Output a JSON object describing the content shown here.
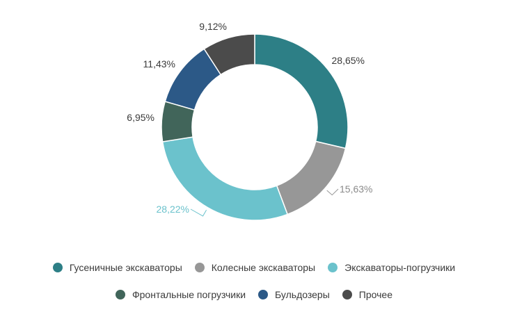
{
  "chart_data": {
    "type": "pie",
    "donut": true,
    "title": "",
    "legend_position": "bottom",
    "slices": [
      {
        "name": "Гусеничные экскаваторы",
        "value": 28.65,
        "label": "28,65%",
        "color": "#2d7f86"
      },
      {
        "name": "Колесные экскаваторы",
        "value": 15.63,
        "label": "15,63%",
        "color": "#979797"
      },
      {
        "name": "Экскаваторы-погрузчики",
        "value": 28.22,
        "label": "28,22%",
        "color": "#6bc2cc"
      },
      {
        "name": "Фронтальные погрузчики",
        "value": 6.95,
        "label": "6,95%",
        "color": "#41655a"
      },
      {
        "name": "Бульдозеры",
        "value": 11.43,
        "label": "11,43%",
        "color": "#2c5987"
      },
      {
        "name": "Прочее",
        "value": 9.12,
        "label": "9,12%",
        "color": "#4b4b4b"
      }
    ]
  }
}
